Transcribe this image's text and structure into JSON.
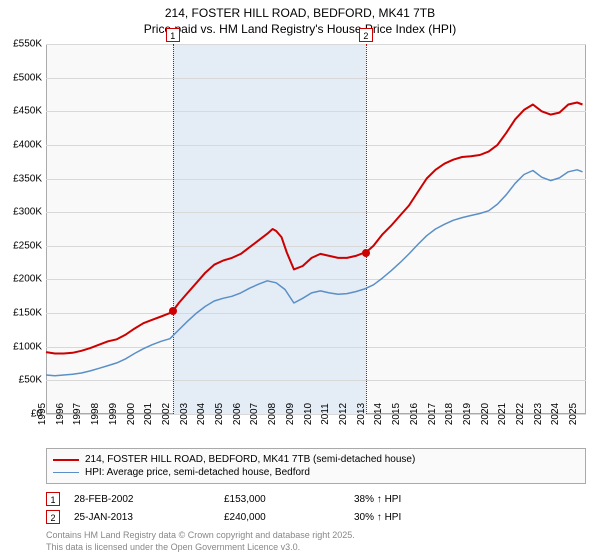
{
  "title": {
    "line1": "214, FOSTER HILL ROAD, BEDFORD, MK41 7TB",
    "line2": "Price paid vs. HM Land Registry's House Price Index (HPI)",
    "fontsize": 12
  },
  "chart": {
    "type": "line",
    "background_color": "#f9f9f9",
    "border_color": "#aaaaaa",
    "grid_color": "#d8d8d8",
    "shade_color": "#e4ecf5",
    "x_min": 1995,
    "x_max": 2025.5,
    "x_ticks": [
      1995,
      1996,
      1997,
      1998,
      1999,
      2000,
      2001,
      2002,
      2003,
      2004,
      2005,
      2006,
      2007,
      2008,
      2009,
      2010,
      2011,
      2012,
      2013,
      2014,
      2015,
      2016,
      2017,
      2018,
      2019,
      2020,
      2021,
      2022,
      2023,
      2024,
      2025
    ],
    "y_min": 0,
    "y_max": 550000,
    "y_ticks": [
      {
        "v": 0,
        "label": "£0"
      },
      {
        "v": 50000,
        "label": "£50K"
      },
      {
        "v": 100000,
        "label": "£100K"
      },
      {
        "v": 150000,
        "label": "£150K"
      },
      {
        "v": 200000,
        "label": "£200K"
      },
      {
        "v": 250000,
        "label": "£250K"
      },
      {
        "v": 300000,
        "label": "£300K"
      },
      {
        "v": 350000,
        "label": "£350K"
      },
      {
        "v": 400000,
        "label": "£400K"
      },
      {
        "v": 450000,
        "label": "£450K"
      },
      {
        "v": 500000,
        "label": "£500K"
      },
      {
        "v": 550000,
        "label": "£550K"
      }
    ],
    "shade_start": 2002.16,
    "shade_end": 2013.07,
    "series": [
      {
        "name": "214, FOSTER HILL ROAD, BEDFORD, MK41 7TB (semi-detached house)",
        "color": "#cc0000",
        "line_width": 2,
        "points": [
          [
            1995.0,
            92000
          ],
          [
            1995.5,
            90000
          ],
          [
            1996.0,
            90000
          ],
          [
            1996.5,
            91000
          ],
          [
            1997.0,
            94000
          ],
          [
            1997.5,
            98000
          ],
          [
            1998.0,
            103000
          ],
          [
            1998.5,
            108000
          ],
          [
            1999.0,
            111000
          ],
          [
            1999.5,
            118000
          ],
          [
            2000.0,
            127000
          ],
          [
            2000.5,
            135000
          ],
          [
            2001.0,
            140000
          ],
          [
            2001.5,
            145000
          ],
          [
            2002.0,
            150000
          ],
          [
            2002.16,
            153000
          ],
          [
            2002.5,
            165000
          ],
          [
            2003.0,
            180000
          ],
          [
            2003.5,
            195000
          ],
          [
            2004.0,
            210000
          ],
          [
            2004.5,
            222000
          ],
          [
            2005.0,
            228000
          ],
          [
            2005.5,
            232000
          ],
          [
            2006.0,
            238000
          ],
          [
            2006.5,
            248000
          ],
          [
            2007.0,
            258000
          ],
          [
            2007.5,
            268000
          ],
          [
            2007.8,
            275000
          ],
          [
            2008.0,
            272000
          ],
          [
            2008.3,
            263000
          ],
          [
            2008.6,
            240000
          ],
          [
            2009.0,
            215000
          ],
          [
            2009.5,
            220000
          ],
          [
            2010.0,
            232000
          ],
          [
            2010.5,
            238000
          ],
          [
            2011.0,
            235000
          ],
          [
            2011.5,
            232000
          ],
          [
            2012.0,
            232000
          ],
          [
            2012.5,
            235000
          ],
          [
            2013.0,
            240000
          ],
          [
            2013.07,
            240000
          ],
          [
            2013.5,
            250000
          ],
          [
            2014.0,
            267000
          ],
          [
            2014.5,
            280000
          ],
          [
            2015.0,
            295000
          ],
          [
            2015.5,
            310000
          ],
          [
            2016.0,
            330000
          ],
          [
            2016.5,
            350000
          ],
          [
            2017.0,
            363000
          ],
          [
            2017.5,
            372000
          ],
          [
            2018.0,
            378000
          ],
          [
            2018.5,
            382000
          ],
          [
            2019.0,
            383000
          ],
          [
            2019.5,
            385000
          ],
          [
            2020.0,
            390000
          ],
          [
            2020.5,
            400000
          ],
          [
            2021.0,
            418000
          ],
          [
            2021.5,
            438000
          ],
          [
            2022.0,
            452000
          ],
          [
            2022.5,
            460000
          ],
          [
            2023.0,
            450000
          ],
          [
            2023.5,
            445000
          ],
          [
            2024.0,
            448000
          ],
          [
            2024.5,
            460000
          ],
          [
            2025.0,
            463000
          ],
          [
            2025.3,
            460000
          ]
        ]
      },
      {
        "name": "HPI: Average price, semi-detached house, Bedford",
        "color": "#5b8fc7",
        "line_width": 1.5,
        "points": [
          [
            1995.0,
            58000
          ],
          [
            1995.5,
            57000
          ],
          [
            1996.0,
            58000
          ],
          [
            1996.5,
            59000
          ],
          [
            1997.0,
            61000
          ],
          [
            1997.5,
            64000
          ],
          [
            1998.0,
            68000
          ],
          [
            1998.5,
            72000
          ],
          [
            1999.0,
            76000
          ],
          [
            1999.5,
            82000
          ],
          [
            2000.0,
            90000
          ],
          [
            2000.5,
            97000
          ],
          [
            2001.0,
            103000
          ],
          [
            2001.5,
            108000
          ],
          [
            2002.0,
            112000
          ],
          [
            2002.5,
            125000
          ],
          [
            2003.0,
            138000
          ],
          [
            2003.5,
            150000
          ],
          [
            2004.0,
            160000
          ],
          [
            2004.5,
            168000
          ],
          [
            2005.0,
            172000
          ],
          [
            2005.5,
            175000
          ],
          [
            2006.0,
            180000
          ],
          [
            2006.5,
            187000
          ],
          [
            2007.0,
            193000
          ],
          [
            2007.5,
            198000
          ],
          [
            2008.0,
            195000
          ],
          [
            2008.5,
            185000
          ],
          [
            2009.0,
            165000
          ],
          [
            2009.5,
            172000
          ],
          [
            2010.0,
            180000
          ],
          [
            2010.5,
            183000
          ],
          [
            2011.0,
            180000
          ],
          [
            2011.5,
            178000
          ],
          [
            2012.0,
            179000
          ],
          [
            2012.5,
            182000
          ],
          [
            2013.0,
            186000
          ],
          [
            2013.5,
            192000
          ],
          [
            2014.0,
            202000
          ],
          [
            2014.5,
            213000
          ],
          [
            2015.0,
            225000
          ],
          [
            2015.5,
            238000
          ],
          [
            2016.0,
            252000
          ],
          [
            2016.5,
            265000
          ],
          [
            2017.0,
            275000
          ],
          [
            2017.5,
            282000
          ],
          [
            2018.0,
            288000
          ],
          [
            2018.5,
            292000
          ],
          [
            2019.0,
            295000
          ],
          [
            2019.5,
            298000
          ],
          [
            2020.0,
            302000
          ],
          [
            2020.5,
            312000
          ],
          [
            2021.0,
            326000
          ],
          [
            2021.5,
            343000
          ],
          [
            2022.0,
            356000
          ],
          [
            2022.5,
            362000
          ],
          [
            2023.0,
            352000
          ],
          [
            2023.5,
            347000
          ],
          [
            2024.0,
            351000
          ],
          [
            2024.5,
            360000
          ],
          [
            2025.0,
            363000
          ],
          [
            2025.3,
            360000
          ]
        ]
      }
    ],
    "markers": [
      {
        "idx": "1",
        "x": 2002.16,
        "y": 153000
      },
      {
        "idx": "2",
        "x": 2013.07,
        "y": 240000
      }
    ]
  },
  "legend": {
    "items": [
      {
        "color": "#cc0000",
        "width": 2,
        "label": "214, FOSTER HILL ROAD, BEDFORD, MK41 7TB (semi-detached house)"
      },
      {
        "color": "#5b8fc7",
        "width": 1.5,
        "label": "HPI: Average price, semi-detached house, Bedford"
      }
    ]
  },
  "sales": [
    {
      "idx": "1",
      "date": "28-FEB-2002",
      "price": "£153,000",
      "hpi": "38% ↑ HPI"
    },
    {
      "idx": "2",
      "date": "25-JAN-2013",
      "price": "£240,000",
      "hpi": "30% ↑ HPI"
    }
  ],
  "footer": {
    "line1": "Contains HM Land Registry data © Crown copyright and database right 2025.",
    "line2": "This data is licensed under the Open Government Licence v3.0."
  }
}
